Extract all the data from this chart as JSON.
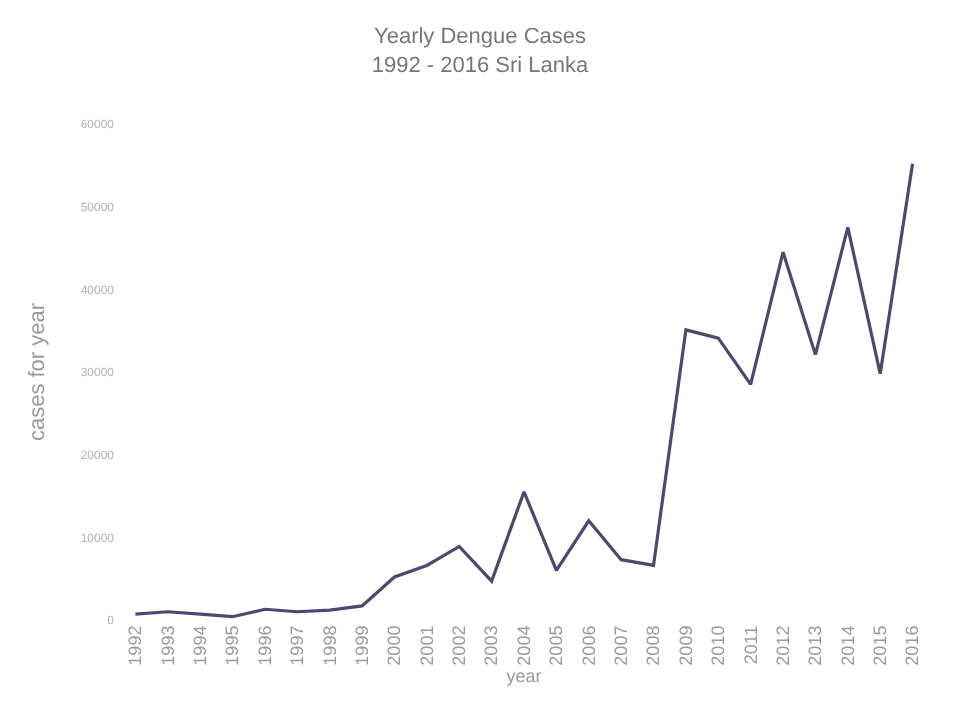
{
  "chart_data": {
    "type": "line",
    "title": "Yearly Dengue Cases",
    "subtitle": "1992 - 2016 Sri Lanka",
    "xlabel": "year",
    "ylabel": "cases for year",
    "categories": [
      "1992",
      "1993",
      "1994",
      "1995",
      "1996",
      "1997",
      "1998",
      "1999",
      "2000",
      "2001",
      "2002",
      "2003",
      "2004",
      "2005",
      "2006",
      "2007",
      "2008",
      "2009",
      "2010",
      "2011",
      "2012",
      "2013",
      "2014",
      "2015",
      "2016"
    ],
    "values": [
      700,
      1000,
      700,
      400,
      1300,
      1000,
      1200,
      1700,
      5200,
      6600,
      8900,
      4700,
      15500,
      6000,
      12000,
      7300,
      6600,
      35100,
      34100,
      28500,
      44500,
      32100,
      47500,
      29800,
      55200
    ],
    "color": "#4b4a6e",
    "ylim": [
      0,
      60000
    ],
    "yticks": [
      0,
      10000,
      20000,
      30000,
      40000,
      50000,
      60000
    ],
    "marker": "none",
    "line_style": "solid"
  }
}
